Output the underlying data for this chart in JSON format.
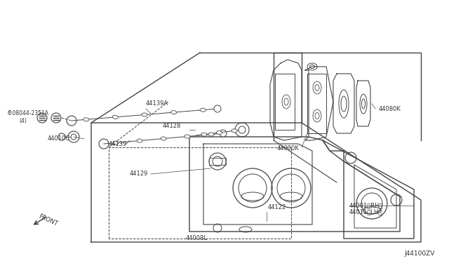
{
  "bg_color": "#ffffff",
  "line_color": "#444444",
  "text_color": "#333333",
  "diagram_id": "J44100ZV",
  "figsize": [
    6.4,
    3.72
  ],
  "dpi": 100,
  "labels": {
    "bolt_label": "®08044-2351A",
    "bolt_sub": "(4)",
    "p44010C": "44010C",
    "p44139A": "44139A",
    "p44128": "44128",
    "p44139": "44139",
    "p44129": "44129",
    "p44122": "44122",
    "p44008L": "44008L",
    "p44001": "44001〈RH〉",
    "p44011": "44011〈LH〉",
    "p44000K": "44000K",
    "p44080K": "44080K",
    "front": "FRONT"
  }
}
